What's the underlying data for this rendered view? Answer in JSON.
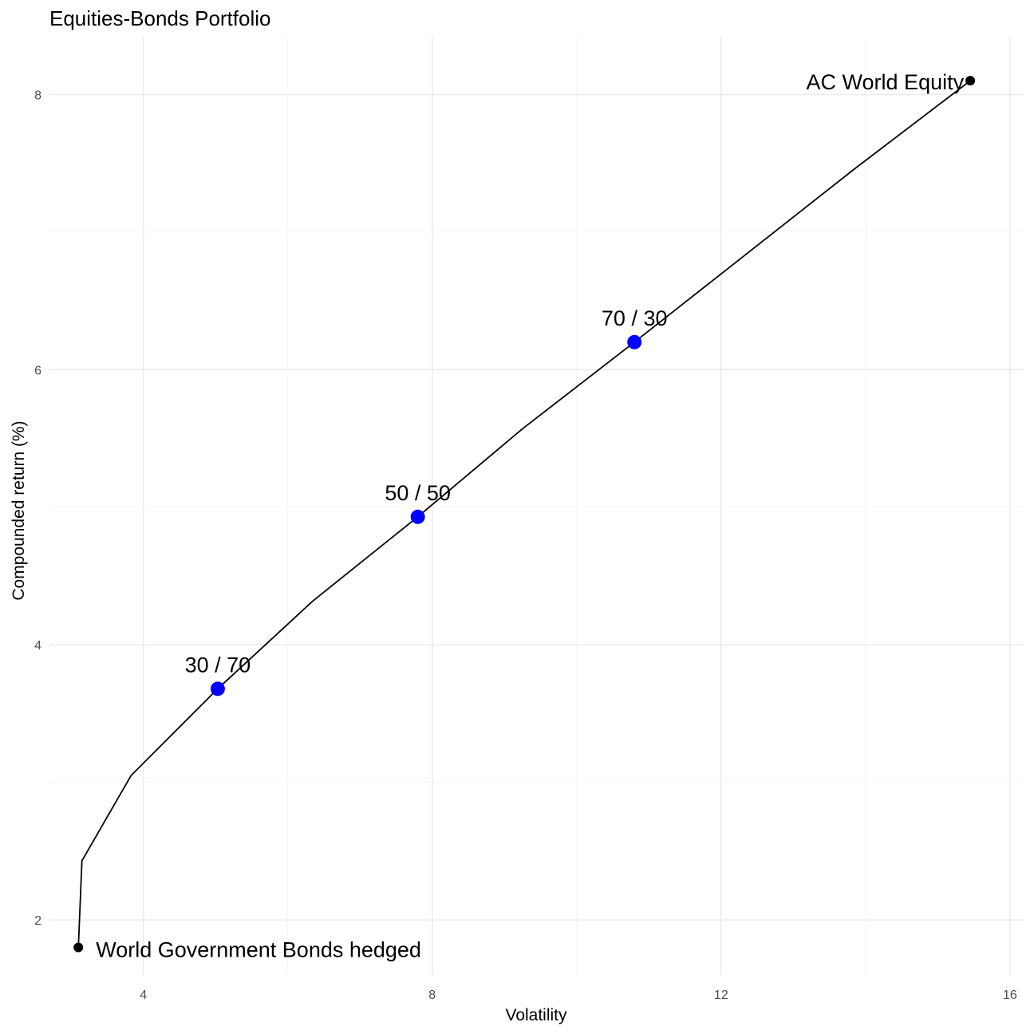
{
  "chart_data": {
    "type": "line",
    "title": "Equities-Bonds Portfolio",
    "xlabel": "Volatility",
    "ylabel": "Compounded return (%)",
    "xlim": [
      2.7,
      16.2
    ],
    "ylim": [
      1.6,
      8.42
    ],
    "x_ticks": [
      4,
      8,
      12,
      16
    ],
    "y_ticks": [
      2,
      4,
      6,
      8
    ],
    "x_tick_labels": [
      "4",
      "8",
      "12",
      "16"
    ],
    "y_tick_labels": [
      "2",
      "4",
      "6",
      "8"
    ],
    "grid": true,
    "legend": "none",
    "series": [
      {
        "name": "",
        "color": "#000000",
        "x": [
          3.1,
          3.15,
          3.83,
          5.03,
          6.35,
          7.8,
          9.25,
          10.8,
          12.3,
          13.85,
          15.45
        ],
        "y": [
          1.8,
          2.43,
          3.05,
          3.68,
          4.32,
          4.93,
          5.57,
          6.2,
          6.82,
          7.46,
          8.1
        ]
      }
    ],
    "endpoints": [
      {
        "label": "World Government Bonds hedged",
        "x": 3.1,
        "y": 1.8,
        "color": "#000000"
      },
      {
        "label": "AC World Equity",
        "x": 15.45,
        "y": 8.1,
        "color": "#000000"
      }
    ],
    "highlighted_points": [
      {
        "label": "30 / 70",
        "x": 5.03,
        "y": 3.68,
        "color": "#0000ff"
      },
      {
        "label": "50 / 50",
        "x": 7.8,
        "y": 4.93,
        "color": "#0000ff"
      },
      {
        "label": "70 / 30",
        "x": 10.8,
        "y": 6.2,
        "color": "#0000ff"
      }
    ]
  }
}
